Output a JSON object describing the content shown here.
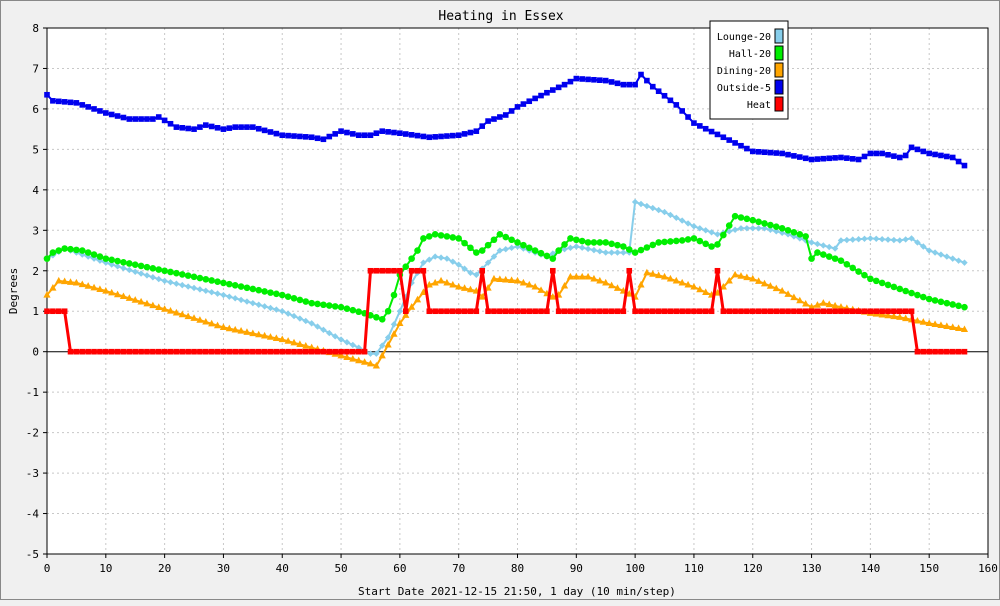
{
  "chart_data": {
    "type": "line",
    "title": "Heating in Essex",
    "xlabel": "Start Date 2021-12-15 21:50, 1 day (10 min/step)",
    "ylabel": "Degrees",
    "xlim": [
      0,
      160
    ],
    "ylim": [
      -5,
      8
    ],
    "xticks": [
      0,
      10,
      20,
      30,
      40,
      50,
      60,
      70,
      80,
      90,
      100,
      110,
      120,
      130,
      140,
      150,
      160
    ],
    "yticks": [
      -5,
      -4,
      -3,
      -2,
      -1,
      0,
      1,
      2,
      3,
      4,
      5,
      6,
      7,
      8
    ],
    "grid": true,
    "legend_position": "top-right",
    "series": [
      {
        "name": "Lounge-20",
        "color": "#87ceeb",
        "marker": "diamond",
        "points": [
          [
            0,
            2.3
          ],
          [
            3,
            2.55
          ],
          [
            10,
            2.2
          ],
          [
            20,
            1.75
          ],
          [
            30,
            1.4
          ],
          [
            40,
            1.0
          ],
          [
            45,
            0.7
          ],
          [
            50,
            0.3
          ],
          [
            53,
            0.1
          ],
          [
            55,
            -0.05
          ],
          [
            56,
            -0.05
          ],
          [
            58,
            0.35
          ],
          [
            60,
            1.0
          ],
          [
            62,
            1.7
          ],
          [
            64,
            2.2
          ],
          [
            66,
            2.35
          ],
          [
            68,
            2.3
          ],
          [
            70,
            2.15
          ],
          [
            72,
            1.95
          ],
          [
            73,
            1.9
          ],
          [
            75,
            2.2
          ],
          [
            77,
            2.5
          ],
          [
            80,
            2.6
          ],
          [
            83,
            2.45
          ],
          [
            85,
            2.35
          ],
          [
            87,
            2.5
          ],
          [
            90,
            2.6
          ],
          [
            95,
            2.45
          ],
          [
            99,
            2.45
          ],
          [
            100,
            3.7
          ],
          [
            105,
            3.45
          ],
          [
            110,
            3.1
          ],
          [
            114,
            2.9
          ],
          [
            118,
            3.05
          ],
          [
            122,
            3.05
          ],
          [
            126,
            2.9
          ],
          [
            130,
            2.7
          ],
          [
            134,
            2.55
          ],
          [
            135,
            2.75
          ],
          [
            140,
            2.8
          ],
          [
            145,
            2.75
          ],
          [
            147,
            2.8
          ],
          [
            150,
            2.5
          ],
          [
            156,
            2.2
          ]
        ]
      },
      {
        "name": "Hall-20",
        "color": "#00ee00",
        "marker": "circle",
        "points": [
          [
            0,
            2.3
          ],
          [
            1,
            2.45
          ],
          [
            3,
            2.55
          ],
          [
            6,
            2.5
          ],
          [
            10,
            2.3
          ],
          [
            20,
            2.0
          ],
          [
            30,
            1.7
          ],
          [
            40,
            1.4
          ],
          [
            45,
            1.2
          ],
          [
            50,
            1.1
          ],
          [
            54,
            0.95
          ],
          [
            56,
            0.85
          ],
          [
            57,
            0.8
          ],
          [
            58,
            1.0
          ],
          [
            59,
            1.4
          ],
          [
            60,
            1.9
          ],
          [
            61,
            2.1
          ],
          [
            62,
            2.3
          ],
          [
            63,
            2.5
          ],
          [
            64,
            2.8
          ],
          [
            66,
            2.9
          ],
          [
            70,
            2.8
          ],
          [
            73,
            2.45
          ],
          [
            74,
            2.5
          ],
          [
            77,
            2.9
          ],
          [
            80,
            2.7
          ],
          [
            83,
            2.5
          ],
          [
            86,
            2.3
          ],
          [
            87,
            2.5
          ],
          [
            89,
            2.8
          ],
          [
            92,
            2.7
          ],
          [
            95,
            2.7
          ],
          [
            98,
            2.6
          ],
          [
            100,
            2.45
          ],
          [
            104,
            2.7
          ],
          [
            108,
            2.75
          ],
          [
            110,
            2.8
          ],
          [
            113,
            2.6
          ],
          [
            114,
            2.65
          ],
          [
            117,
            3.35
          ],
          [
            120,
            3.25
          ],
          [
            125,
            3.05
          ],
          [
            129,
            2.85
          ],
          [
            130,
            2.3
          ],
          [
            131,
            2.45
          ],
          [
            135,
            2.25
          ],
          [
            140,
            1.8
          ],
          [
            145,
            1.55
          ],
          [
            150,
            1.3
          ],
          [
            156,
            1.1
          ]
        ]
      },
      {
        "name": "Dining-20",
        "color": "#ffa500",
        "marker": "triangle",
        "points": [
          [
            0,
            1.4
          ],
          [
            2,
            1.75
          ],
          [
            5,
            1.7
          ],
          [
            10,
            1.5
          ],
          [
            20,
            1.05
          ],
          [
            30,
            0.6
          ],
          [
            40,
            0.3
          ],
          [
            45,
            0.1
          ],
          [
            50,
            -0.1
          ],
          [
            55,
            -0.3
          ],
          [
            56,
            -0.35
          ],
          [
            57,
            -0.1
          ],
          [
            60,
            0.7
          ],
          [
            62,
            1.1
          ],
          [
            65,
            1.65
          ],
          [
            67,
            1.75
          ],
          [
            70,
            1.6
          ],
          [
            73,
            1.5
          ],
          [
            74,
            1.35
          ],
          [
            76,
            1.8
          ],
          [
            80,
            1.75
          ],
          [
            83,
            1.6
          ],
          [
            86,
            1.35
          ],
          [
            87,
            1.4
          ],
          [
            89,
            1.85
          ],
          [
            92,
            1.85
          ],
          [
            95,
            1.7
          ],
          [
            98,
            1.5
          ],
          [
            100,
            1.35
          ],
          [
            102,
            1.95
          ],
          [
            105,
            1.85
          ],
          [
            110,
            1.6
          ],
          [
            113,
            1.4
          ],
          [
            114,
            1.45
          ],
          [
            117,
            1.9
          ],
          [
            120,
            1.8
          ],
          [
            125,
            1.5
          ],
          [
            130,
            1.1
          ],
          [
            132,
            1.2
          ],
          [
            135,
            1.1
          ],
          [
            140,
            0.95
          ],
          [
            145,
            0.85
          ],
          [
            150,
            0.7
          ],
          [
            156,
            0.55
          ]
        ]
      },
      {
        "name": "Outside-5",
        "color": "#0000ee",
        "marker": "square",
        "points": [
          [
            0,
            6.35
          ],
          [
            1,
            6.2
          ],
          [
            5,
            6.15
          ],
          [
            10,
            5.9
          ],
          [
            14,
            5.75
          ],
          [
            18,
            5.75
          ],
          [
            19,
            5.8
          ],
          [
            22,
            5.55
          ],
          [
            25,
            5.5
          ],
          [
            27,
            5.6
          ],
          [
            30,
            5.5
          ],
          [
            32,
            5.55
          ],
          [
            35,
            5.55
          ],
          [
            40,
            5.35
          ],
          [
            45,
            5.3
          ],
          [
            47,
            5.25
          ],
          [
            50,
            5.45
          ],
          [
            53,
            5.35
          ],
          [
            55,
            5.35
          ],
          [
            57,
            5.45
          ],
          [
            60,
            5.4
          ],
          [
            65,
            5.3
          ],
          [
            70,
            5.35
          ],
          [
            73,
            5.45
          ],
          [
            75,
            5.7
          ],
          [
            78,
            5.85
          ],
          [
            80,
            6.05
          ],
          [
            85,
            6.4
          ],
          [
            88,
            6.6
          ],
          [
            90,
            6.75
          ],
          [
            95,
            6.7
          ],
          [
            98,
            6.6
          ],
          [
            100,
            6.6
          ],
          [
            101,
            6.85
          ],
          [
            103,
            6.55
          ],
          [
            107,
            6.1
          ],
          [
            110,
            5.65
          ],
          [
            115,
            5.3
          ],
          [
            120,
            4.95
          ],
          [
            125,
            4.9
          ],
          [
            130,
            4.75
          ],
          [
            135,
            4.8
          ],
          [
            138,
            4.75
          ],
          [
            140,
            4.9
          ],
          [
            142,
            4.9
          ],
          [
            145,
            4.8
          ],
          [
            146,
            4.85
          ],
          [
            147,
            5.05
          ],
          [
            150,
            4.9
          ],
          [
            154,
            4.8
          ],
          [
            156,
            4.6
          ]
        ]
      },
      {
        "name": "Heat",
        "color": "#ff0000",
        "marker": "square",
        "points": [
          [
            0,
            1
          ],
          [
            3,
            1
          ],
          [
            4,
            0
          ],
          [
            54,
            0
          ],
          [
            55,
            2
          ],
          [
            60,
            2
          ],
          [
            61,
            1
          ],
          [
            62,
            2
          ],
          [
            64,
            2
          ],
          [
            65,
            1
          ],
          [
            73,
            1
          ],
          [
            74,
            2
          ],
          [
            75,
            1
          ],
          [
            85,
            1
          ],
          [
            86,
            2
          ],
          [
            87,
            1
          ],
          [
            98,
            1
          ],
          [
            99,
            2
          ],
          [
            100,
            1
          ],
          [
            113,
            1
          ],
          [
            114,
            2
          ],
          [
            115,
            1
          ],
          [
            147,
            1
          ],
          [
            148,
            0
          ],
          [
            156,
            0
          ]
        ]
      }
    ]
  }
}
